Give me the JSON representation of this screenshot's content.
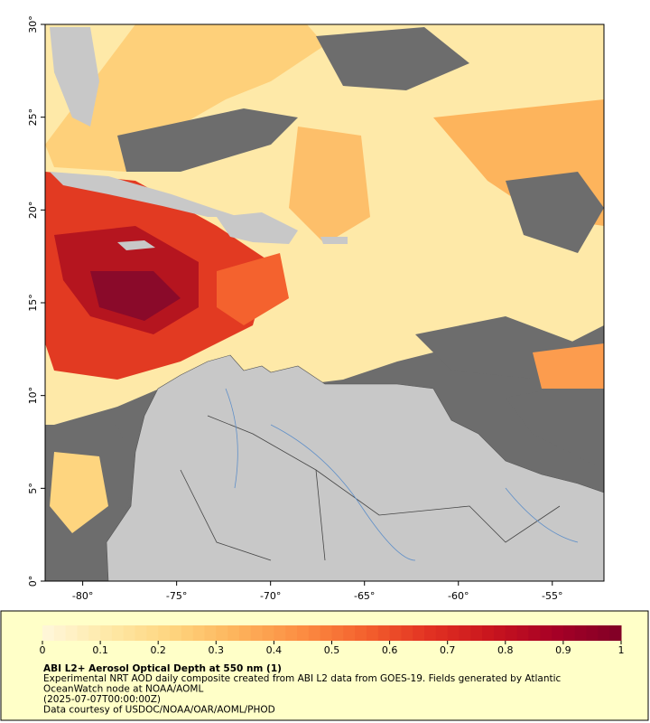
{
  "map": {
    "lon_ticks": [
      {
        "value": -80,
        "label": "-80°"
      },
      {
        "value": -75,
        "label": "-75°"
      },
      {
        "value": -70,
        "label": "-70°"
      },
      {
        "value": -65,
        "label": "-65°"
      },
      {
        "value": -60,
        "label": "-60°"
      },
      {
        "value": -55,
        "label": "-55°"
      }
    ],
    "lat_ticks": [
      {
        "value": 0,
        "label": "0°"
      },
      {
        "value": 5,
        "label": "5°"
      },
      {
        "value": 10,
        "label": "10°"
      },
      {
        "value": 15,
        "label": "15°"
      },
      {
        "value": 20,
        "label": "20°"
      },
      {
        "value": 25,
        "label": "25°"
      },
      {
        "value": 30,
        "label": "30°"
      }
    ],
    "lonlim": [
      -82,
      -52.25
    ],
    "latlim": [
      0,
      30
    ]
  },
  "colorbar": {
    "lim": [
      0,
      1
    ],
    "ticks": [
      0,
      0.1,
      0.2,
      0.3,
      0.4,
      0.5,
      0.6,
      0.7,
      0.8,
      0.9,
      1
    ],
    "colors": [
      "#fff7dc",
      "#fee9a8",
      "#fed57f",
      "#fdb45c",
      "#fc8e43",
      "#f4622e",
      "#e23222",
      "#c8141e",
      "#a50026",
      "#800026"
    ]
  },
  "caption": {
    "title": "ABI L2+ Aerosol Optical Depth at 550 nm (1)",
    "lines": [
      "Experimental NRT AOD daily composite created from ABI L2 data from GOES-19. Fields generated by Atlantic",
      "OceanWatch node at NOAA/AOML",
      "(2025-07-07T00:00:00Z)",
      "Data courtesy of USDOC/NOAA/OAR/AOML/PHOD"
    ]
  }
}
